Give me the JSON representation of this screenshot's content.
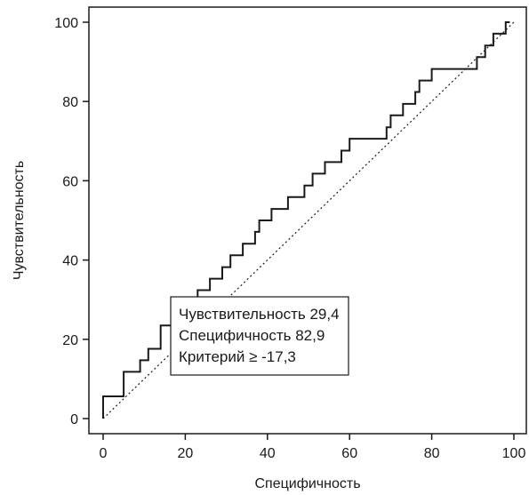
{
  "chart_data": {
    "type": "line",
    "xlabel": "Специфичность",
    "ylabel": "Чувствительность",
    "xlim": [
      0,
      100
    ],
    "ylim": [
      0,
      100
    ],
    "xticks": [
      "0",
      "20",
      "40",
      "60",
      "80",
      "100"
    ],
    "yticks": [
      "0",
      "20",
      "40",
      "60",
      "80",
      "100"
    ],
    "grid": false,
    "series": [
      {
        "style": "solid",
        "x": [
          0,
          0,
          5,
          5,
          9,
          9,
          11,
          11,
          14,
          14,
          19,
          19,
          23,
          23,
          26,
          26,
          29,
          29,
          31,
          31,
          34,
          34,
          37,
          37,
          38,
          38,
          41,
          41,
          45,
          45,
          49,
          49,
          51,
          51,
          54,
          54,
          58,
          58,
          60,
          60,
          69,
          69,
          70,
          70,
          73,
          73,
          76,
          76,
          77,
          77,
          80,
          80,
          91,
          91,
          93,
          93,
          95,
          95,
          98,
          98,
          99,
          99
        ],
        "y": [
          0,
          5.6,
          5.6,
          11.8,
          11.8,
          14.7,
          14.7,
          17.6,
          17.6,
          23.5,
          23.5,
          29.4,
          29.4,
          32.4,
          32.4,
          35.3,
          35.3,
          38.2,
          38.2,
          41.2,
          41.2,
          44.1,
          44.1,
          47.1,
          47.1,
          50,
          50,
          52.9,
          52.9,
          55.9,
          55.9,
          58.8,
          58.8,
          61.8,
          61.8,
          64.7,
          64.7,
          67.6,
          67.6,
          70.6,
          70.6,
          73.5,
          73.5,
          76.5,
          76.5,
          79.4,
          79.4,
          82.4,
          82.4,
          85.3,
          85.3,
          88.2,
          88.2,
          91.2,
          91.2,
          94.1,
          94.1,
          97.1,
          97.1,
          100,
          100,
          100
        ]
      },
      {
        "style": "dotted",
        "x": [
          0,
          100
        ],
        "y": [
          0,
          100
        ]
      }
    ],
    "annotation": {
      "lines": [
        "Чувствительность 29,4",
        "Специфичность 82,9",
        "Критерий ≥ -17,3"
      ]
    }
  }
}
